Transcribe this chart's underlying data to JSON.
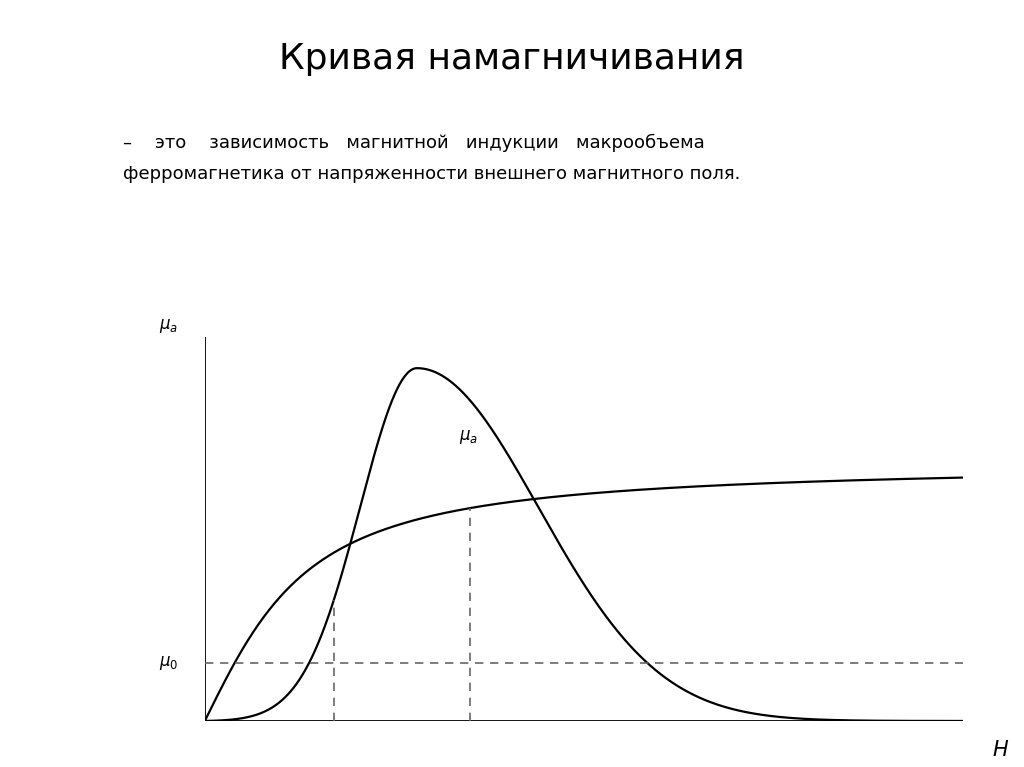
{
  "title": "Кривая намагничивания",
  "subtitle_line1": "–    это    зависимость   магнитной   индукции   макрообъема",
  "subtitle_line2": "ферромагнетика от напряженности внешнего магнитного поля.",
  "background_color": "#ffffff",
  "title_fontsize": 26,
  "subtitle_fontsize": 13,
  "xlabel": "H",
  "ylabel_top": "μa",
  "ylabel_mu_a": "μa",
  "ylabel_mu0": "μ0",
  "curve_color": "#000000",
  "dashed_color": "#666666",
  "xlim": [
    0,
    10
  ],
  "ylim": [
    0,
    10
  ],
  "mu0_level": 1.5,
  "peak_x": 2.8,
  "peak_y": 9.2,
  "vline1_x": 1.7,
  "vline2_x": 3.5,
  "b_sat": 6.8,
  "b_intersection_x": 3.5,
  "b_intersection_y": 5.0
}
